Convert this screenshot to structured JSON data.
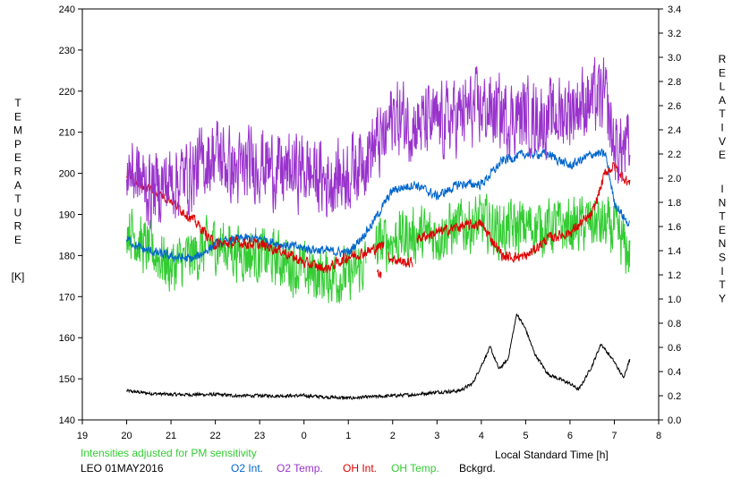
{
  "chart_data": {
    "type": "line",
    "title": "",
    "left_axis": {
      "label_letters": [
        "T",
        "E",
        "M",
        "P",
        "E",
        "R",
        "A",
        "T",
        "U",
        "R",
        "E"
      ],
      "unit": "[K]",
      "ylim": [
        140,
        240
      ],
      "ticks": [
        "140",
        "150",
        "160",
        "170",
        "180",
        "190",
        "200",
        "210",
        "220",
        "230",
        "240"
      ]
    },
    "right_axis": {
      "label_word1": [
        "R",
        "E",
        "L",
        "A",
        "T",
        "I",
        "V",
        "E"
      ],
      "label_word2": [
        "I",
        "N",
        "T",
        "E",
        "N",
        "S",
        "I",
        "T",
        "Y"
      ],
      "ylim": [
        0.0,
        3.4
      ],
      "ticks": [
        "0.0",
        "0.2",
        "0.4",
        "0.6",
        "0.8",
        "1.0",
        "1.2",
        "1.4",
        "1.6",
        "1.8",
        "2.0",
        "2.2",
        "2.4",
        "2.6",
        "2.8",
        "3.0",
        "3.2",
        "3.4"
      ]
    },
    "x_axis": {
      "label": "Local Standard Time [h]",
      "ticks": [
        "19",
        "20",
        "21",
        "22",
        "23",
        "0",
        "1",
        "2",
        "3",
        "4",
        "5",
        "6",
        "7",
        "8"
      ],
      "xlim": [
        19,
        32
      ]
    },
    "note": "Intensities adjusted for PM sensitivity",
    "station": "LEO 01MAY2016",
    "legend": [
      {
        "label": "O2 Int.",
        "color": "#0066cc"
      },
      {
        "label": "O2 Temp.",
        "color": "#9933cc"
      },
      {
        "label": "OH Int.",
        "color": "#dd0000"
      },
      {
        "label": "OH Temp.",
        "color": "#33cc33"
      },
      {
        "label": "Bckgrd.",
        "color": "#000000"
      }
    ],
    "series": [
      {
        "name": "O2 Temp.",
        "axis": "left",
        "color": "#9933cc",
        "noise": 8,
        "x": [
          20.0,
          20.5,
          21.0,
          21.5,
          22.0,
          22.5,
          23.0,
          23.5,
          24.0,
          24.5,
          25.0,
          25.5,
          25.8,
          26.0,
          26.5,
          27.0,
          27.5,
          28.0,
          28.5,
          29.0,
          29.5,
          30.0,
          30.5,
          30.8,
          31.0,
          31.35
        ],
        "y": [
          202,
          196,
          198,
          200,
          205,
          200,
          203,
          200,
          201,
          198,
          200,
          206,
          208,
          214,
          212,
          212,
          214,
          216,
          214,
          214,
          213,
          216,
          218,
          218,
          206,
          206
        ]
      },
      {
        "name": "O2 Int.",
        "axis": "right",
        "color": "#0066cc",
        "noise": 0.035,
        "x": [
          20.0,
          20.3,
          20.7,
          21.0,
          21.5,
          22.0,
          22.5,
          23.0,
          23.5,
          24.0,
          24.5,
          25.0,
          25.5,
          26.0,
          26.5,
          27.0,
          27.5,
          28.0,
          28.5,
          29.0,
          29.5,
          30.0,
          30.5,
          30.8,
          31.0,
          31.35
        ],
        "y": [
          1.5,
          1.42,
          1.38,
          1.35,
          1.33,
          1.45,
          1.5,
          1.5,
          1.45,
          1.42,
          1.4,
          1.38,
          1.6,
          1.9,
          1.95,
          1.85,
          1.95,
          1.95,
          2.15,
          2.2,
          2.2,
          2.1,
          2.2,
          2.2,
          1.8,
          1.6
        ]
      },
      {
        "name": "OH Int.",
        "axis": "right",
        "color": "#dd0000",
        "noise": 0.04,
        "segments": [
          {
            "x": [
              20.0,
              20.3,
              20.6,
              21.0,
              21.3,
              21.6,
              22.0,
              22.5,
              23.0,
              23.5,
              24.0,
              24.5,
              25.0,
              25.5,
              25.8
            ],
            "y": [
              2.05,
              1.95,
              1.9,
              1.82,
              1.72,
              1.62,
              1.45,
              1.47,
              1.45,
              1.4,
              1.3,
              1.25,
              1.35,
              1.4,
              1.45
            ]
          },
          {
            "x": [
              25.65,
              25.75
            ],
            "y": [
              1.25,
              1.2
            ]
          },
          {
            "x": [
              25.9,
              26.1,
              26.3,
              26.45
            ],
            "y": [
              1.35,
              1.32,
              1.3,
              1.3
            ]
          },
          {
            "x": [
              26.55,
              27.0,
              27.5,
              28.0,
              28.5,
              29.0,
              29.5,
              30.0,
              30.5,
              30.8,
              31.0,
              31.35
            ],
            "y": [
              1.5,
              1.55,
              1.6,
              1.62,
              1.35,
              1.35,
              1.5,
              1.55,
              1.7,
              2.05,
              2.1,
              1.95
            ]
          }
        ]
      },
      {
        "name": "OH Temp.",
        "axis": "left",
        "color": "#33cc33",
        "noise": 6,
        "segments": [
          {
            "x": [
              20.0,
              20.3,
              20.7,
              21.0,
              21.5,
              22.0,
              22.5,
              23.0,
              23.5,
              24.0,
              24.5,
              25.0,
              25.4
            ],
            "y": [
              188,
              183,
              180,
              177,
              180,
              183,
              181,
              180,
              179,
              176,
              175,
              175,
              178
            ]
          },
          {
            "x": [
              25.6,
              26.0,
              26.5,
              27.0,
              27.5,
              28.0,
              28.5,
              29.0,
              29.5,
              30.0,
              30.5,
              31.0,
              31.35
            ],
            "y": [
              182,
              184,
              185,
              185,
              187,
              188,
              186,
              187,
              187,
              187,
              188,
              186,
              180
            ]
          }
        ]
      },
      {
        "name": "Bckgrd.",
        "axis": "right",
        "color": "#000000",
        "noise": 0.012,
        "x": [
          20.0,
          20.5,
          21.0,
          21.5,
          22.0,
          22.5,
          23.0,
          23.5,
          24.0,
          24.5,
          25.0,
          25.5,
          26.0,
          26.5,
          27.0,
          27.5,
          27.8,
          28.0,
          28.2,
          28.4,
          28.6,
          28.8,
          29.0,
          29.2,
          29.5,
          30.0,
          30.2,
          30.5,
          30.7,
          31.0,
          31.2,
          31.35
        ],
        "y": [
          0.24,
          0.22,
          0.21,
          0.21,
          0.21,
          0.2,
          0.2,
          0.2,
          0.2,
          0.19,
          0.18,
          0.19,
          0.2,
          0.21,
          0.23,
          0.24,
          0.3,
          0.45,
          0.6,
          0.42,
          0.5,
          0.88,
          0.75,
          0.55,
          0.38,
          0.3,
          0.25,
          0.45,
          0.63,
          0.48,
          0.35,
          0.5
        ]
      }
    ]
  }
}
